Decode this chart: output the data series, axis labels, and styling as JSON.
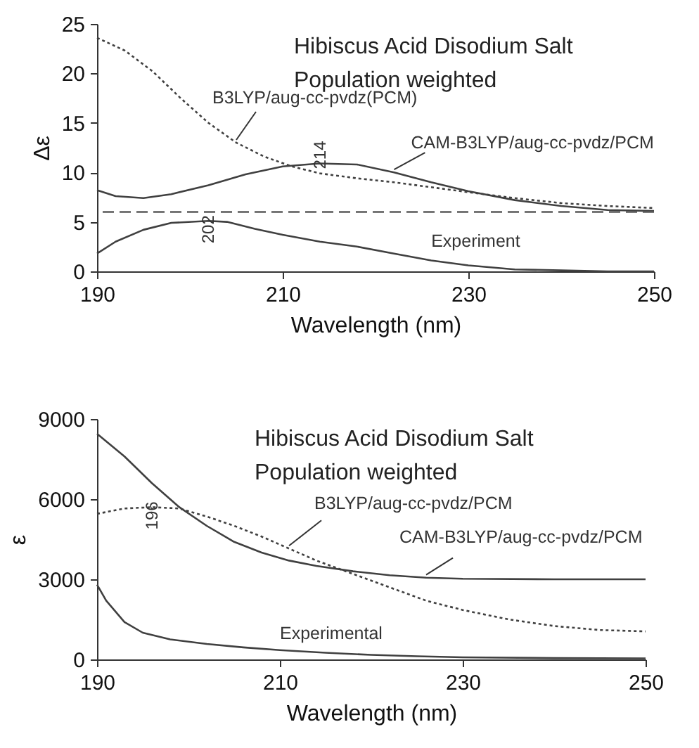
{
  "chart_data": [
    {
      "type": "line",
      "title": "Hibiscus Acid Disodium Salt",
      "subtitle": "Population weighted",
      "xlabel": "Wavelength (nm)",
      "ylabel": "Δε",
      "xlim": [
        190,
        250
      ],
      "xticks": [
        190,
        210,
        230,
        250
      ],
      "ylim": [
        0,
        25
      ],
      "yticks": [
        0,
        5,
        10,
        15,
        20,
        25
      ],
      "grid": false,
      "series": [
        {
          "name": "B3LYP/aug-cc-pvdz(PCM)",
          "color": "#404040",
          "line_style": "dotted",
          "x": [
            190,
            193,
            196,
            199,
            202,
            205,
            208,
            211,
            214,
            218,
            222,
            226,
            230,
            235,
            240,
            245,
            250
          ],
          "values": [
            23.6,
            22.3,
            20.2,
            17.5,
            15.0,
            13.0,
            11.6,
            10.6,
            9.9,
            9.4,
            9.0,
            8.5,
            8.0,
            7.4,
            6.9,
            6.6,
            6.4
          ]
        },
        {
          "name": "CAM-B3LYP/aug-cc-pvdz/PCM",
          "color": "#404040",
          "line_style": "solid",
          "x": [
            190,
            192,
            195,
            198,
            202,
            206,
            210,
            214,
            218,
            222,
            226,
            230,
            235,
            240,
            245,
            250
          ],
          "values": [
            8.2,
            7.6,
            7.4,
            7.8,
            8.7,
            9.8,
            10.6,
            10.9,
            10.8,
            10.0,
            9.0,
            8.1,
            7.2,
            6.6,
            6.2,
            6.1
          ]
        },
        {
          "name": "Experiment",
          "color": "#404040",
          "line_style": "solid",
          "x": [
            190,
            192,
            195,
            198,
            202,
            204,
            207,
            210,
            214,
            218,
            222,
            226,
            230,
            235,
            240,
            245,
            250
          ],
          "values": [
            1.8,
            3.0,
            4.2,
            4.9,
            5.1,
            5.0,
            4.3,
            3.7,
            3.0,
            2.5,
            1.8,
            1.1,
            0.6,
            0.2,
            0.1,
            0.0,
            0.0
          ]
        }
      ],
      "ref_lines": [
        {
          "axis": "y",
          "value": 6,
          "color": "#595959",
          "line_style": "dashed"
        }
      ],
      "annotations": [
        {
          "text": "214",
          "x": 214,
          "y": 10.9
        },
        {
          "text": "202",
          "x": 202,
          "y": 5.1
        }
      ]
    },
    {
      "type": "line",
      "title": "Hibiscus Acid Disodium Salt",
      "subtitle": "Population weighted",
      "xlabel": "Wavelength (nm)",
      "ylabel": "ε",
      "xlim": [
        190,
        250
      ],
      "xticks": [
        190,
        210,
        230,
        250
      ],
      "ylim": [
        0,
        9000
      ],
      "yticks": [
        0,
        3000,
        6000,
        9000
      ],
      "grid": false,
      "series": [
        {
          "name": "B3LYP/aug-cc-pvdz/PCM",
          "color": "#404040",
          "line_style": "dotted",
          "x": [
            190,
            193,
            196,
            199,
            202,
            205,
            208,
            211,
            214,
            218,
            222,
            226,
            230,
            235,
            240,
            245,
            250
          ],
          "values": [
            5450,
            5650,
            5700,
            5650,
            5350,
            5000,
            4600,
            4150,
            3700,
            3200,
            2700,
            2200,
            1850,
            1500,
            1250,
            1100,
            1050
          ]
        },
        {
          "name": "CAM-B3LYP/aug-cc-pvdz/PCM",
          "color": "#404040",
          "line_style": "solid",
          "x": [
            190,
            193,
            196,
            199,
            202,
            205,
            208,
            211,
            214,
            218,
            222,
            226,
            230,
            240,
            250
          ],
          "values": [
            8450,
            7600,
            6600,
            5700,
            5000,
            4400,
            4000,
            3700,
            3500,
            3300,
            3150,
            3060,
            3020,
            3000,
            3000
          ]
        },
        {
          "name": "Experimental",
          "color": "#404040",
          "line_style": "solid",
          "x": [
            190,
            191,
            193,
            195,
            198,
            202,
            206,
            210,
            215,
            220,
            225,
            230,
            240,
            250
          ],
          "values": [
            2800,
            2200,
            1400,
            1000,
            750,
            580,
            450,
            350,
            250,
            170,
            120,
            80,
            50,
            40
          ]
        }
      ],
      "annotations": [
        {
          "text": "196",
          "x": 196,
          "y": 5700
        }
      ]
    }
  ]
}
